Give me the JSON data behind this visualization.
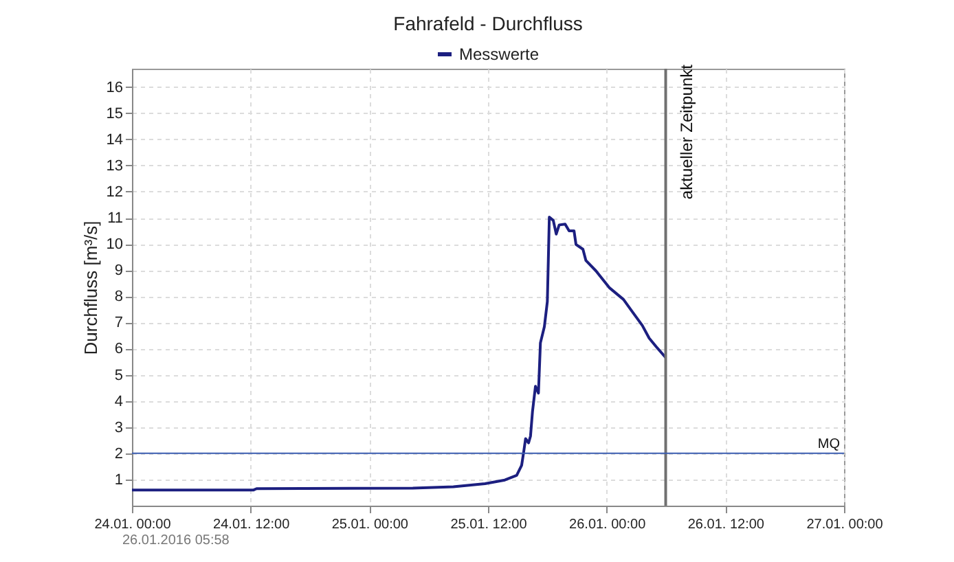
{
  "chart_data": {
    "type": "line",
    "title": "Fahrafeld - Durchfluss",
    "ylabel": "Durchfluss [m³/s]",
    "x": [
      "2016-01-24T00:00",
      "2016-01-24T12:18",
      "2016-01-24T12:36",
      "2016-01-25T04:24",
      "2016-01-25T08:30",
      "2016-01-25T11:42",
      "2016-01-25T13:42",
      "2016-01-25T14:54",
      "2016-01-25T15:24",
      "2016-01-25T15:36",
      "2016-01-25T15:48",
      "2016-01-25T16:06",
      "2016-01-25T16:18",
      "2016-01-25T16:30",
      "2016-01-25T16:48",
      "2016-01-25T17:06",
      "2016-01-25T17:18",
      "2016-01-25T17:42",
      "2016-01-25T18:00",
      "2016-01-25T18:06",
      "2016-01-25T18:12",
      "2016-01-25T18:36",
      "2016-01-25T18:54",
      "2016-01-25T19:12",
      "2016-01-25T19:48",
      "2016-01-25T20:12",
      "2016-01-25T20:42",
      "2016-01-25T20:54",
      "2016-01-25T21:36",
      "2016-01-25T21:54",
      "2016-01-25T22:54",
      "2016-01-26T00:18",
      "2016-01-26T01:42",
      "2016-01-26T02:36",
      "2016-01-26T03:36",
      "2016-01-26T04:18",
      "2016-01-26T05:00",
      "2016-01-26T05:58"
    ],
    "series": [
      {
        "name": "Messwerte",
        "color": "#1c1f80",
        "values": [
          0.6,
          0.6,
          0.65,
          0.67,
          0.72,
          0.84,
          0.98,
          1.16,
          1.54,
          2.03,
          2.56,
          2.4,
          2.66,
          3.6,
          4.56,
          4.3,
          6.22,
          6.84,
          7.8,
          9.37,
          11.03,
          10.9,
          10.38,
          10.73,
          10.76,
          10.5,
          10.5,
          9.98,
          9.8,
          9.37,
          8.98,
          8.32,
          7.88,
          7.41,
          6.89,
          6.4,
          6.08,
          5.66
        ]
      }
    ],
    "xlim": [
      "2016-01-24T00:00",
      "2016-01-27T00:00"
    ],
    "xticks": [
      {
        "value": "2016-01-24T00:00",
        "label": "24.01. 00:00"
      },
      {
        "value": "2016-01-24T12:00",
        "label": "24.01. 12:00"
      },
      {
        "value": "2016-01-25T00:00",
        "label": "25.01. 00:00"
      },
      {
        "value": "2016-01-25T12:00",
        "label": "25.01. 12:00"
      },
      {
        "value": "2016-01-26T00:00",
        "label": "26.01. 00:00"
      },
      {
        "value": "2016-01-26T12:00",
        "label": "26.01. 12:00"
      },
      {
        "value": "2016-01-27T00:00",
        "label": "27.01. 00:00"
      }
    ],
    "ylim": [
      0,
      16.7
    ],
    "yticks": [
      1,
      2,
      3,
      4,
      5,
      6,
      7,
      8,
      9,
      10,
      11,
      12,
      13,
      14,
      15,
      16
    ],
    "ref_lines": [
      {
        "axis": "x",
        "value": "2016-01-26T05:58",
        "label": "aktueller Zeitpunkt",
        "color": "#707070"
      },
      {
        "axis": "y",
        "value": 2,
        "label": "MQ",
        "color": "#3a5cb0"
      }
    ],
    "annotations": [
      "26.01.2016  05:58"
    ],
    "grid": true,
    "legend": "top",
    "line_style": "solid",
    "marker": "none"
  }
}
